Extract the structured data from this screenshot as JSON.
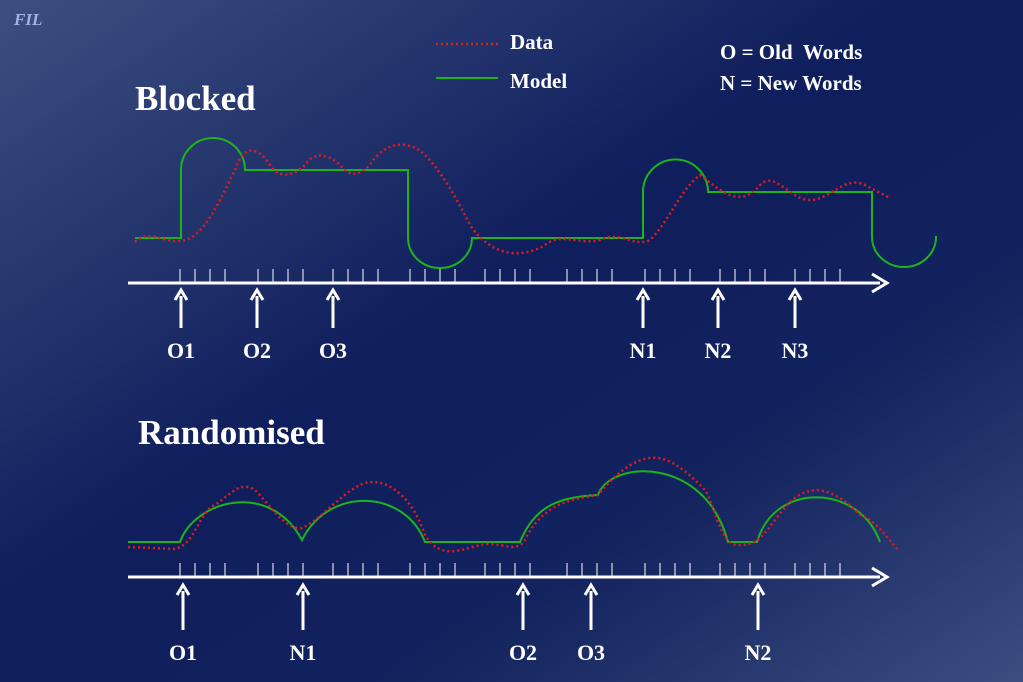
{
  "logo": "FIL",
  "legend": {
    "data": "Data",
    "model": "Model"
  },
  "key": [
    "O = Old  Words",
    "N = New Words"
  ],
  "panels": [
    {
      "title": "Blocked",
      "events": [
        "O1",
        "O2",
        "O3",
        "N1",
        "N2",
        "N3"
      ]
    },
    {
      "title": "Randomised",
      "events": [
        "O1",
        "N1",
        "O2",
        "O3",
        "N2"
      ]
    }
  ]
}
